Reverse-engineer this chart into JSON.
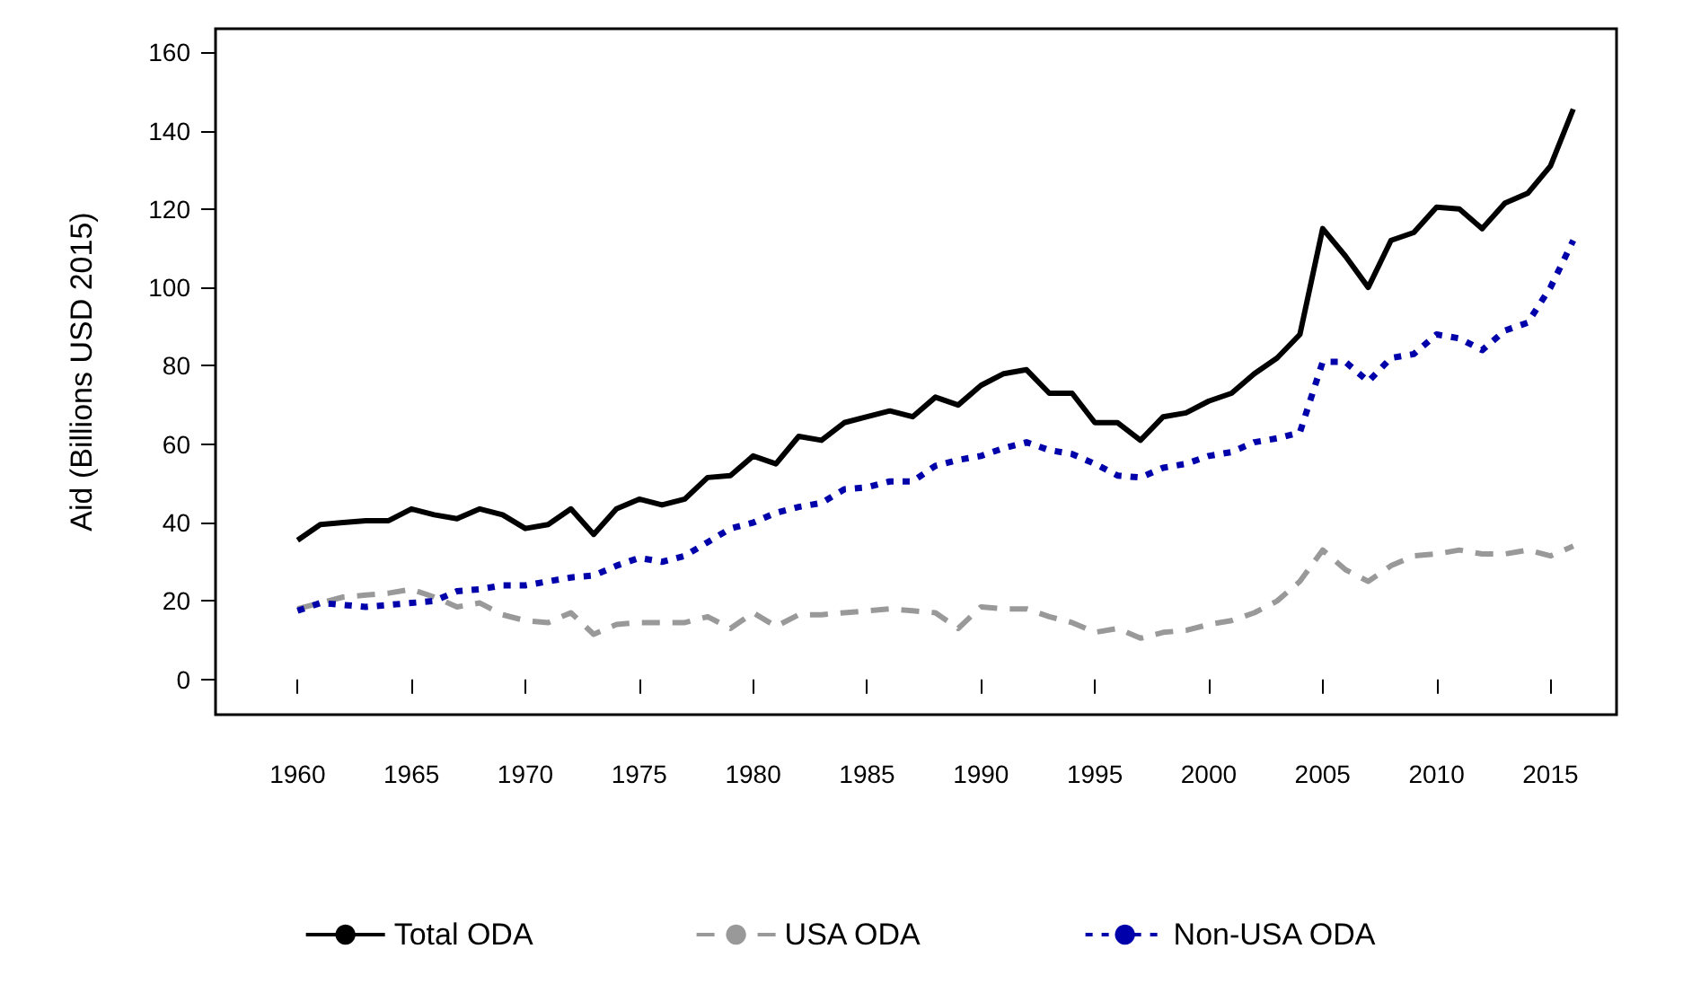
{
  "chart_data": {
    "type": "line",
    "ylabel": "Aid (Billions USD 2015)",
    "x": [
      1960,
      1961,
      1962,
      1963,
      1964,
      1965,
      1966,
      1967,
      1968,
      1969,
      1970,
      1971,
      1972,
      1973,
      1974,
      1975,
      1976,
      1977,
      1978,
      1979,
      1980,
      1981,
      1982,
      1983,
      1984,
      1985,
      1986,
      1987,
      1988,
      1989,
      1990,
      1991,
      1992,
      1993,
      1994,
      1995,
      1996,
      1997,
      1998,
      1999,
      2000,
      2001,
      2002,
      2003,
      2004,
      2005,
      2006,
      2007,
      2008,
      2009,
      2010,
      2011,
      2012,
      2013,
      2014,
      2015,
      2016
    ],
    "series": [
      {
        "name": "Total ODA",
        "color": "#000000",
        "line_style": "solid",
        "values": [
          35.5,
          39.5,
          40,
          40.5,
          40.5,
          43.5,
          42,
          41,
          43.5,
          42,
          38.5,
          39.5,
          43.5,
          37,
          43.5,
          46,
          44.5,
          46,
          51.5,
          52,
          57,
          55,
          62,
          61,
          65.5,
          67,
          68.5,
          67,
          72,
          70,
          75,
          78,
          79,
          73,
          73,
          65.5,
          65.5,
          61,
          67,
          68,
          71,
          73,
          78,
          82,
          88,
          115,
          108,
          100,
          112,
          114,
          120.5,
          120,
          115,
          121.5,
          124,
          131,
          145.5
        ]
      },
      {
        "name": "USA ODA",
        "color": "#999999",
        "line_style": "dashed",
        "values": [
          18,
          19.5,
          21,
          21.5,
          22,
          23,
          21,
          18.5,
          19.5,
          16.5,
          15,
          14.5,
          17,
          11.5,
          14,
          14.5,
          14.5,
          14.5,
          16,
          13,
          17,
          13.5,
          16.5,
          16.5,
          17,
          17.5,
          18,
          17.5,
          17,
          13,
          18.5,
          18,
          18,
          16,
          14.5,
          12,
          13,
          10.5,
          12,
          12.5,
          14,
          15,
          17,
          20,
          25,
          33,
          28,
          25,
          29,
          31.5,
          32,
          33,
          32,
          32,
          33,
          31.5,
          34
        ]
      },
      {
        "name": "Non-USA ODA",
        "color": "#0000aa",
        "line_style": "dotted",
        "values": [
          17.5,
          19.5,
          19,
          18.5,
          19,
          19.5,
          20,
          22.5,
          23,
          24,
          24,
          25,
          26,
          26.5,
          29,
          31,
          30,
          31.5,
          35,
          38.5,
          40,
          42.5,
          44,
          45,
          48.5,
          49,
          50.5,
          50.5,
          54.5,
          56,
          57,
          59,
          60.5,
          58.5,
          57.5,
          55,
          52,
          51.5,
          54,
          55,
          57,
          58,
          60.5,
          61.5,
          63,
          81,
          81,
          76,
          82,
          83,
          88,
          87,
          84,
          89,
          91,
          100,
          112
        ]
      }
    ],
    "xlim": [
      1956.4,
      2017.9
    ],
    "xticks": [
      1960,
      1965,
      1970,
      1975,
      1980,
      1985,
      1990,
      1995,
      2000,
      2005,
      2010,
      2015
    ],
    "ylim": [
      -9,
      166
    ],
    "yticks": [
      0,
      20,
      40,
      60,
      80,
      100,
      120,
      140,
      160
    ],
    "grid": false,
    "legend": "bottom",
    "marker": "none"
  }
}
